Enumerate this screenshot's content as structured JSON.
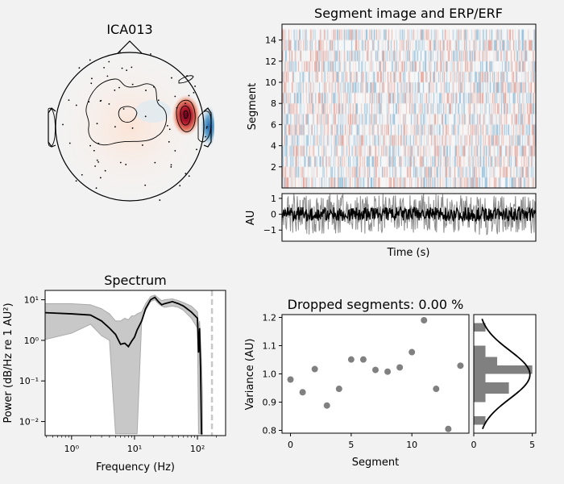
{
  "topomap": {
    "title": "ICA013",
    "colors": {
      "positive": "#b2182b",
      "negative": "#2166ac"
    }
  },
  "segment_image": {
    "title": "Segment image and ERP/ERF",
    "ylabel": "Segment",
    "yticks": [
      "2",
      "4",
      "6",
      "8",
      "10",
      "12",
      "14"
    ],
    "ylim": [
      0,
      15.5
    ],
    "colormap": "RdBu_r"
  },
  "erp": {
    "ylabel": "AU",
    "xlabel": "Time (s)",
    "yticks": [
      "1",
      "0",
      "−1"
    ],
    "ylim": [
      -1.7,
      1.3
    ]
  },
  "chart_data": [
    {
      "type": "line",
      "title": "Spectrum",
      "xlabel": "Frequency (Hz)",
      "ylabel": "Power (dB/Hz re 1 AU²)",
      "xscale": "log",
      "yscale": "log",
      "xlim": [
        0.38,
        280
      ],
      "ylim": [
        0.0045,
        17
      ],
      "xticks": [
        "10⁰",
        "10¹",
        "10²"
      ],
      "yticks": [
        "10¹",
        "10⁰",
        "10⁻¹",
        "10⁻²"
      ],
      "x": [
        0.38,
        1,
        2,
        3,
        4,
        5,
        6,
        7,
        8,
        9,
        10,
        11,
        13,
        15,
        18,
        21,
        24,
        27,
        30,
        40,
        50,
        60,
        80,
        100,
        104,
        108,
        112,
        116,
        120
      ],
      "mean": [
        4.8,
        4.5,
        4.2,
        3.0,
        2.0,
        1.4,
        0.8,
        0.85,
        0.7,
        0.95,
        1.2,
        1.8,
        3.0,
        6,
        10,
        11.5,
        9,
        7.5,
        8,
        9,
        8,
        7,
        5,
        3.5,
        0.5,
        2,
        0.2,
        0.005,
        0.005
      ],
      "upper": [
        8,
        8,
        7.5,
        6,
        4.5,
        3,
        3,
        3.5,
        3.2,
        4,
        4,
        4.5,
        5,
        8,
        12,
        13,
        11,
        9.5,
        10,
        10.5,
        9.5,
        8.5,
        7,
        5,
        2,
        3,
        1,
        0.3,
        0.05
      ],
      "lower": [
        1.05,
        1.5,
        2.5,
        1.3,
        1,
        0.005,
        0.005,
        0.005,
        0.005,
        0.005,
        0.005,
        0.005,
        3,
        5.5,
        9,
        10,
        8,
        7,
        6.5,
        7,
        6.5,
        5.5,
        3.5,
        2,
        0.005,
        0.005,
        0.005,
        0.005,
        0.005
      ],
      "cutoff_frequency": 170
    },
    {
      "type": "scatter",
      "title": "Dropped segments: 0.00 %",
      "xlabel": "Segment",
      "ylabel": "Variance (AU)",
      "xlim": [
        -0.7,
        14.7
      ],
      "ylim": [
        0.79,
        1.21
      ],
      "xticks": [
        "0",
        "5",
        "10"
      ],
      "yticks": [
        "0.8",
        "0.9",
        "1.0",
        "1.1",
        "1.2"
      ],
      "x": [
        0,
        1,
        2,
        3,
        4,
        5,
        6,
        7,
        8,
        9,
        10,
        11,
        12,
        13,
        14
      ],
      "y": [
        0.98,
        0.935,
        1.017,
        0.888,
        0.947,
        1.051,
        1.051,
        1.014,
        1.008,
        1.023,
        1.077,
        1.19,
        0.947,
        0.805,
        1.029
      ],
      "color": "#808080"
    },
    {
      "type": "bar",
      "orientation": "horizontal",
      "xticks": [
        "0",
        "5"
      ],
      "xlim": [
        0,
        5.3
      ],
      "bin_edges": [
        0.82,
        0.85,
        0.88,
        0.9,
        0.93,
        0.97,
        1.0,
        1.03,
        1.06,
        1.1,
        1.15,
        1.18
      ],
      "counts": [
        1,
        0,
        0,
        1,
        3,
        1,
        5,
        2,
        1,
        0,
        1
      ],
      "color": "#808080",
      "fit": "normal"
    }
  ]
}
